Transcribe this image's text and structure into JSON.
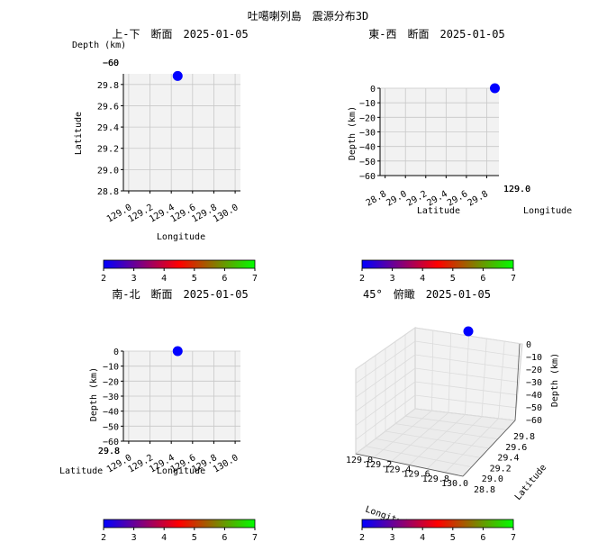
{
  "chart_data": {
    "type": "scatter",
    "suptitle": "吐噶喇列島　震源分布3D",
    "event": {
      "longitude": 129.46,
      "latitude": 29.88,
      "depth": 0,
      "magnitude": 2
    },
    "colorbar": {
      "ticks": [
        "2",
        "3",
        "4",
        "5",
        "6",
        "7"
      ],
      "range": [
        2,
        7
      ],
      "colors": [
        "#0000ff",
        "#800080",
        "#ff0000",
        "#808000",
        "#00ff00"
      ]
    },
    "point_color": "#0000ff",
    "panels": [
      {
        "id": "top",
        "title": "上-下　断面　2025-01-05",
        "xlabel": "Longitude",
        "ylabel": "Latitude",
        "zlabel": "Depth (km)",
        "xticks": [
          "129.0",
          "129.2",
          "129.4",
          "129.6",
          "129.8",
          "130.0"
        ],
        "yticks": [
          "28.8",
          "29.0",
          "29.2",
          "29.4",
          "29.6",
          "29.8"
        ],
        "ztick_overlap": "−60",
        "xlim": [
          128.95,
          130.05
        ],
        "ylim": [
          28.8,
          29.9
        ]
      },
      {
        "id": "east-west",
        "title": "東-西　断面　2025-01-05",
        "xlabel": "Latitude",
        "ylabel": "Depth (km)",
        "zlabel": "Longitude",
        "xticks": [
          "28.8",
          "29.0",
          "29.2",
          "29.4",
          "29.6",
          "29.8"
        ],
        "yticks": [
          "0",
          "−10",
          "−20",
          "−30",
          "−40",
          "−50",
          "−60"
        ],
        "ztick_overlap": "129.0",
        "xlim": [
          28.75,
          29.92
        ],
        "ylim": [
          -60,
          0
        ]
      },
      {
        "id": "north-south",
        "title": "南-北　断面　2025-01-05",
        "xlabel": "Longitude",
        "ylabel": "Depth (km)",
        "zlabel": "Latitude",
        "xticks": [
          "129.0",
          "129.2",
          "129.4",
          "129.6",
          "129.8",
          "130.0"
        ],
        "yticks": [
          "0",
          "−10",
          "−20",
          "−30",
          "−40",
          "−50",
          "−60"
        ],
        "ztick_overlap": "29.8",
        "xlim": [
          128.95,
          130.05
        ],
        "ylim": [
          -60,
          0
        ]
      },
      {
        "id": "oblique",
        "title": "45°　俯瞰　2025-01-05",
        "xlabel": "Longitude",
        "ylabel": "Latitude",
        "zlabel": "Depth (km)",
        "xticks": [
          "129.0",
          "129.2",
          "129.4",
          "129.6",
          "129.8",
          "130.0"
        ],
        "yticks": [
          "28.8",
          "29.0",
          "29.2",
          "29.4",
          "29.6",
          "29.8"
        ],
        "zticks": [
          "0",
          "−10",
          "−20",
          "−30",
          "−40",
          "−50",
          "−60"
        ]
      }
    ]
  }
}
